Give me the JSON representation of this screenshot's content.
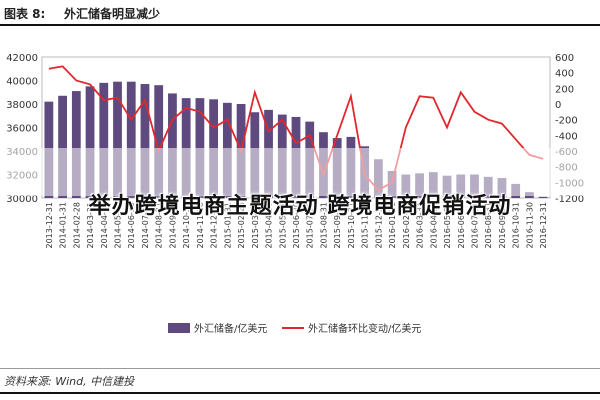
{
  "header": {
    "figure_label": "图表 8:",
    "title": "外汇储备明显减少"
  },
  "banner": "举办跨境电商主题活动 跨境电商促销活动",
  "source": "资料来源: Wind, 中信建投",
  "colors": {
    "bar": "#5e4a7e",
    "line": "#e0282e",
    "axis": "#888888"
  },
  "chart_data": {
    "type": "bar+line",
    "categories": [
      "2013-12-31",
      "2014-01-31",
      "2014-02-28",
      "2014-03-31",
      "2014-04-30",
      "2014-05-31",
      "2014-06-30",
      "2014-07-31",
      "2014-08-31",
      "2014-09-30",
      "2014-10-31",
      "2014-11-30",
      "2014-12-31",
      "2015-01-31",
      "2015-02-28",
      "2015-03-31",
      "2015-04-30",
      "2015-05-31",
      "2015-06-30",
      "2015-07-31",
      "2015-08-31",
      "2015-09-30",
      "2015-10-31",
      "2015-11-30",
      "2015-12-31",
      "2016-01-31",
      "2016-02-29",
      "2016-03-31",
      "2016-04-30",
      "2016-05-31",
      "2016-06-30",
      "2016-07-31",
      "2016-08-31",
      "2016-09-30",
      "2016-10-31",
      "2016-11-30",
      "2016-12-31"
    ],
    "series": [
      {
        "name": "外汇储备/亿美元",
        "axis": "left",
        "kind": "bar",
        "values": [
          38200,
          38700,
          39100,
          39500,
          39800,
          39900,
          39900,
          39700,
          39600,
          38900,
          38500,
          38500,
          38400,
          38100,
          38000,
          37300,
          37500,
          37100,
          36900,
          36500,
          35600,
          35100,
          35200,
          34400,
          33300,
          32300,
          32000,
          32100,
          32200,
          31900,
          32000,
          32000,
          31800,
          31700,
          31200,
          30500,
          30100
        ]
      },
      {
        "name": "外汇储备环比变动/亿美元",
        "axis": "right",
        "kind": "line",
        "values": [
          450,
          480,
          300,
          250,
          50,
          80,
          -200,
          50,
          -600,
          -200,
          -50,
          -100,
          -300,
          -200,
          -600,
          150,
          -350,
          -200,
          -500,
          -400,
          -900,
          -400,
          100,
          -900,
          -1100,
          -1000,
          -300,
          100,
          80,
          -300,
          150,
          -100,
          -200,
          -250,
          -450,
          -650,
          -700
        ]
      }
    ],
    "left_axis": {
      "min": 30000,
      "max": 42000,
      "ticks": [
        30000,
        32000,
        34000,
        36000,
        38000,
        40000,
        42000
      ]
    },
    "right_axis": {
      "min": -1200,
      "max": 600,
      "ticks": [
        -1200,
        -1000,
        -800,
        -600,
        -400,
        -200,
        0,
        200,
        400,
        600
      ]
    },
    "legend": [
      "外汇储备/亿美元",
      "外汇储备环比变动/亿美元"
    ],
    "legend_position": "bottom"
  }
}
